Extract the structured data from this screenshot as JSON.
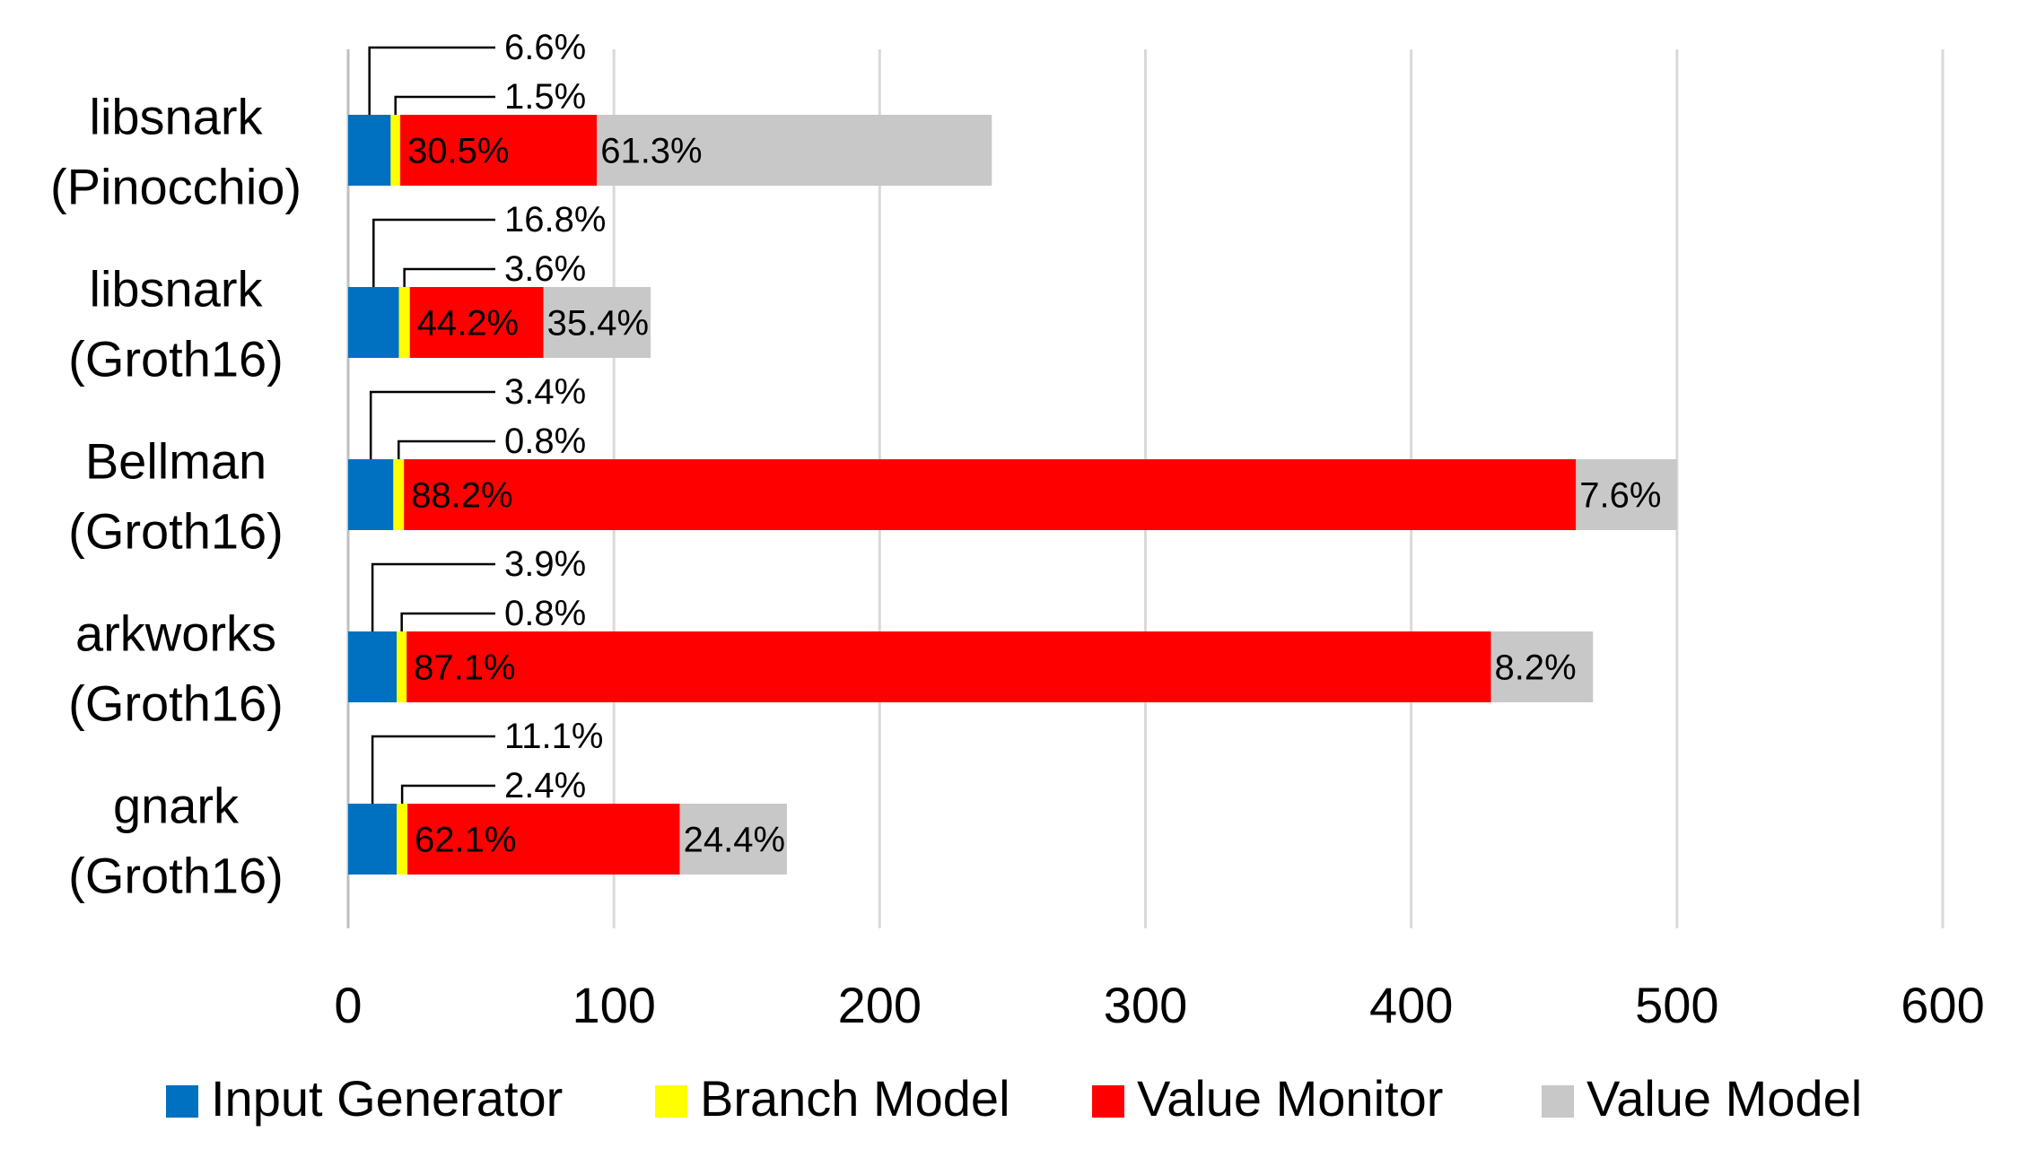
{
  "chart_data": {
    "type": "bar",
    "orientation": "horizontal",
    "stacked": true,
    "categories": [
      [
        "libsnark",
        "(Pinocchio)"
      ],
      [
        "libsnark",
        "(Groth16)"
      ],
      [
        "Bellman",
        "(Groth16)"
      ],
      [
        "arkworks",
        "(Groth16)"
      ],
      [
        "gnark",
        "(Groth16)"
      ]
    ],
    "series": [
      {
        "name": "Input Generator",
        "color": "#0070C0",
        "values": [
          16.0,
          19.1,
          17.0,
          18.3,
          18.3
        ],
        "labels": [
          "6.6%",
          "16.8%",
          "3.4%",
          "3.9%",
          "11.1%"
        ]
      },
      {
        "name": "Branch Model",
        "color": "#FFFF00",
        "values": [
          3.6,
          4.1,
          4.0,
          3.7,
          4.0
        ],
        "labels": [
          "1.5%",
          "3.6%",
          "0.8%",
          "0.8%",
          "2.4%"
        ]
      },
      {
        "name": "Value Monitor",
        "color": "#FF0000",
        "values": [
          74.0,
          50.3,
          441.0,
          408.0,
          102.5
        ],
        "labels": [
          "30.5%",
          "44.2%",
          "88.2%",
          "87.1%",
          "62.1%"
        ]
      },
      {
        "name": "Value Model",
        "color": "#C8C8C8",
        "values": [
          148.6,
          40.3,
          38.0,
          38.4,
          40.3
        ],
        "labels": [
          "61.3%",
          "35.4%",
          "7.6%",
          "8.2%",
          "24.4%"
        ]
      }
    ],
    "xlim": [
      0,
      600
    ],
    "xticks": [
      0,
      100,
      200,
      300,
      400,
      500,
      600
    ],
    "grid": "vertical",
    "legend_position": "bottom"
  }
}
